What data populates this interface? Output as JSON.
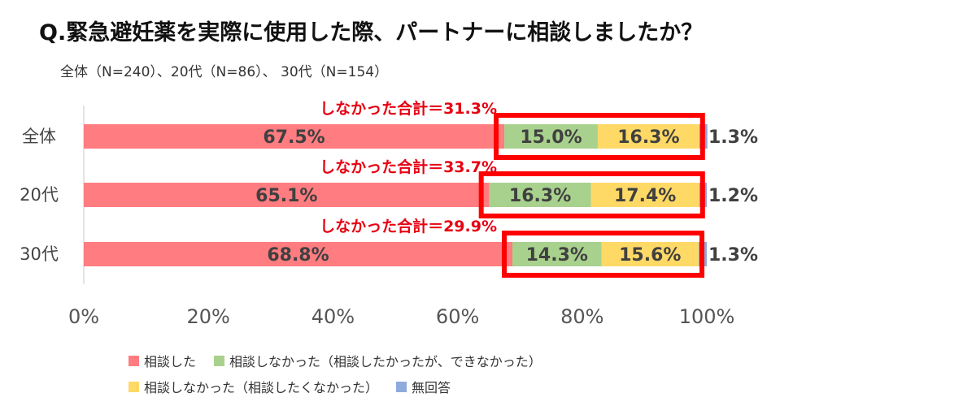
{
  "title": "Q.緊急避妊薬を実際に使用した際、パートナーに相談しましたか？",
  "subtitle": "全体（N=240）、20代（N=86）、 30代（N=154）",
  "colors": {
    "consulted": "#ff7c80",
    "not_couldnt": "#a9d18e",
    "not_didnt_want": "#ffd966",
    "no_answer": "#8faadc",
    "highlight": "#ff0000",
    "annotation": "#e60012"
  },
  "chart_data": {
    "type": "bar",
    "orientation": "horizontal",
    "stacked": true,
    "categories": [
      "全体",
      "20代",
      "30代"
    ],
    "series": [
      {
        "name": "相談した",
        "values": [
          67.5,
          65.1,
          68.8
        ],
        "color": "#ff7c80"
      },
      {
        "name": "相談しなかった（相談したかったが、できなかった）",
        "values": [
          15.0,
          16.3,
          14.3
        ],
        "color": "#a9d18e"
      },
      {
        "name": "相談しなかった（相談したくなかった）",
        "values": [
          16.3,
          17.4,
          15.6
        ],
        "color": "#ffd966"
      },
      {
        "name": "無回答",
        "values": [
          1.3,
          1.2,
          1.3
        ],
        "color": "#8faadc"
      }
    ],
    "data_labels": [
      [
        "67.5%",
        "15.0%",
        "16.3%",
        "1.3%"
      ],
      [
        "65.1%",
        "16.3%",
        "17.4%",
        "1.2%"
      ],
      [
        "68.8%",
        "14.3%",
        "15.6%",
        "1.3%"
      ]
    ],
    "annotations": [
      "しなかった合計＝31.3%",
      "しなかった合計＝33.7%",
      "しなかった合計＝29.9%"
    ],
    "xlim": [
      0,
      100
    ],
    "xticks": [
      "0%",
      "20%",
      "40%",
      "60%",
      "80%",
      "100%"
    ],
    "legend_position": "bottom",
    "grid": false
  },
  "legend": {
    "rows": [
      [
        {
          "label": "相談した",
          "color": "#ff7c80"
        },
        {
          "label": "相談しなかった（相談したかったが、できなかった）",
          "color": "#a9d18e"
        }
      ],
      [
        {
          "label": "相談しなかった（相談したくなかった）",
          "color": "#ffd966"
        },
        {
          "label": "無回答",
          "color": "#8faadc"
        }
      ]
    ]
  }
}
